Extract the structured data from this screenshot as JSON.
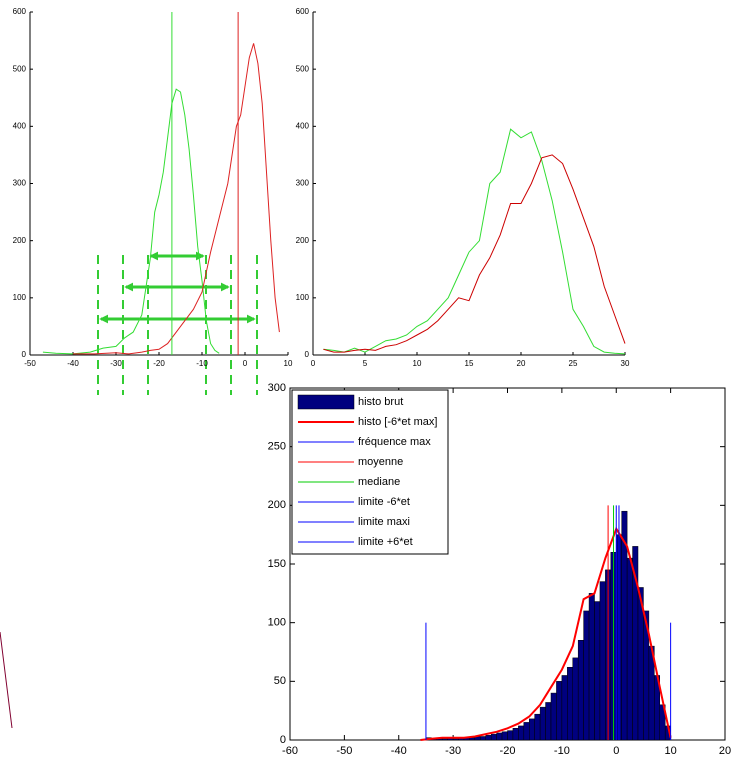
{
  "chart_data": [
    {
      "type": "line",
      "xlim": [
        -50,
        10
      ],
      "xticks": [
        -50,
        -40,
        -30,
        -20,
        -10,
        0,
        10
      ],
      "ylim": [
        0,
        600
      ],
      "yticks": [
        0,
        100,
        200,
        300,
        400,
        500,
        600
      ],
      "series": [
        {
          "color": "#33dd33",
          "x": [
            -47,
            -44,
            -40,
            -36,
            -33,
            -30,
            -28,
            -26,
            -24,
            -22,
            -21,
            -20,
            -19,
            -18,
            -17,
            -16,
            -15,
            -14,
            -13,
            -12,
            -11,
            -10,
            -9,
            -8,
            -7,
            -6
          ],
          "values": [
            5,
            3,
            2,
            5,
            12,
            15,
            30,
            40,
            70,
            170,
            250,
            280,
            320,
            380,
            440,
            465,
            460,
            420,
            360,
            280,
            190,
            130,
            60,
            20,
            8,
            3
          ]
        },
        {
          "color": "#dd2222",
          "x": [
            -40,
            -35,
            -30,
            -27,
            -24,
            -22,
            -20,
            -18,
            -15,
            -12,
            -10,
            -8,
            -6,
            -4,
            -2,
            -1,
            0,
            1,
            2,
            3,
            4,
            5,
            6,
            7,
            8
          ],
          "values": [
            2,
            2,
            4,
            2,
            5,
            8,
            10,
            20,
            50,
            80,
            110,
            180,
            240,
            300,
            400,
            420,
            470,
            520,
            545,
            510,
            440,
            320,
            200,
            100,
            40
          ]
        }
      ],
      "vlines": [
        {
          "color": "#33dd33",
          "x": -17
        },
        {
          "color": "#dd2222",
          "x": -1.6
        }
      ]
    },
    {
      "type": "line",
      "xlim": [
        0,
        30
      ],
      "xticks": [
        0,
        5,
        10,
        15,
        20,
        25,
        30
      ],
      "ylim": [
        0,
        600
      ],
      "yticks": [
        0,
        100,
        200,
        300,
        400,
        500,
        600
      ],
      "series": [
        {
          "color": "#33dd33",
          "x": [
            1,
            2,
            3,
            4,
            5,
            6,
            7,
            8,
            9,
            10,
            11,
            12,
            13,
            14,
            15,
            16,
            17,
            18,
            19,
            20,
            21,
            22,
            23,
            24,
            25,
            26,
            27,
            28,
            29,
            30
          ],
          "values": [
            10,
            8,
            5,
            12,
            5,
            15,
            25,
            28,
            35,
            50,
            60,
            80,
            100,
            140,
            180,
            200,
            300,
            320,
            395,
            380,
            390,
            340,
            270,
            180,
            80,
            50,
            15,
            5,
            3,
            2
          ]
        },
        {
          "color": "#cc0000",
          "x": [
            1,
            2,
            3,
            4,
            5,
            6,
            7,
            8,
            9,
            10,
            11,
            12,
            13,
            14,
            15,
            16,
            17,
            18,
            19,
            20,
            21,
            22,
            23,
            24,
            25,
            26,
            27,
            28,
            29,
            30
          ],
          "values": [
            10,
            5,
            5,
            8,
            10,
            8,
            15,
            18,
            25,
            35,
            45,
            60,
            80,
            100,
            95,
            140,
            170,
            210,
            265,
            265,
            300,
            345,
            350,
            335,
            290,
            240,
            190,
            120,
            70,
            20
          ]
        }
      ]
    },
    {
      "type": "histogram",
      "xlim": [
        -60,
        20
      ],
      "xticks": [
        -60,
        -50,
        -40,
        -30,
        -20,
        -10,
        0,
        10,
        20
      ],
      "ylim": [
        0,
        300
      ],
      "yticks": [
        0,
        50,
        100,
        150,
        200,
        250,
        300
      ],
      "name": "histo brut",
      "color": "#00007f",
      "bins": [
        -36,
        -35,
        -34,
        -33,
        -32,
        -31,
        -30,
        -29,
        -28,
        -27,
        -26,
        -25,
        -24,
        -23,
        -22,
        -21,
        -20,
        -19,
        -18,
        -17,
        -16,
        -15,
        -14,
        -13,
        -12,
        -11,
        -10,
        -9,
        -8,
        -7,
        -6,
        -5,
        -4,
        -3,
        -2,
        -1,
        0,
        1,
        2,
        3,
        4,
        5,
        6,
        7,
        8,
        9,
        10
      ],
      "counts": [
        0,
        2,
        1,
        1,
        1,
        2,
        1,
        2,
        2,
        2,
        3,
        3,
        4,
        5,
        6,
        7,
        8,
        10,
        12,
        15,
        18,
        22,
        28,
        32,
        40,
        50,
        55,
        62,
        70,
        85,
        110,
        125,
        118,
        135,
        145,
        160,
        175,
        195,
        155,
        165,
        130,
        110,
        80,
        55,
        30,
        12
      ],
      "series": [
        {
          "name": "histo [-6*et max]",
          "color": "#ff0000",
          "x": [
            -36,
            -34,
            -32,
            -30,
            -28,
            -26,
            -24,
            -22,
            -20,
            -18,
            -16,
            -14,
            -12,
            -10,
            -8,
            -6,
            -4,
            -2,
            0,
            2,
            4,
            6,
            8,
            10
          ],
          "values": [
            0,
            1,
            2,
            2,
            2,
            3,
            5,
            7,
            10,
            14,
            20,
            30,
            45,
            60,
            80,
            120,
            125,
            155,
            180,
            165,
            130,
            90,
            45,
            2
          ]
        }
      ],
      "vlines": [
        {
          "name": "fréquence max",
          "color": "#0000ff",
          "x": 0,
          "value": 200
        },
        {
          "name": "moyenne",
          "color": "#ff0000",
          "x": -1.5,
          "value": 200
        },
        {
          "name": "mediane",
          "color": "#00cc00",
          "x": -0.5,
          "value": 200
        },
        {
          "name": "limite -6*et",
          "color": "#0000ff",
          "x": -35,
          "value": 100
        },
        {
          "name": "limite maxi",
          "color": "#0000ff",
          "x": 0.5,
          "value": 200
        },
        {
          "name": "limite +6*et",
          "color": "#0000ff",
          "x": 10,
          "value": 100
        }
      ]
    }
  ]
}
